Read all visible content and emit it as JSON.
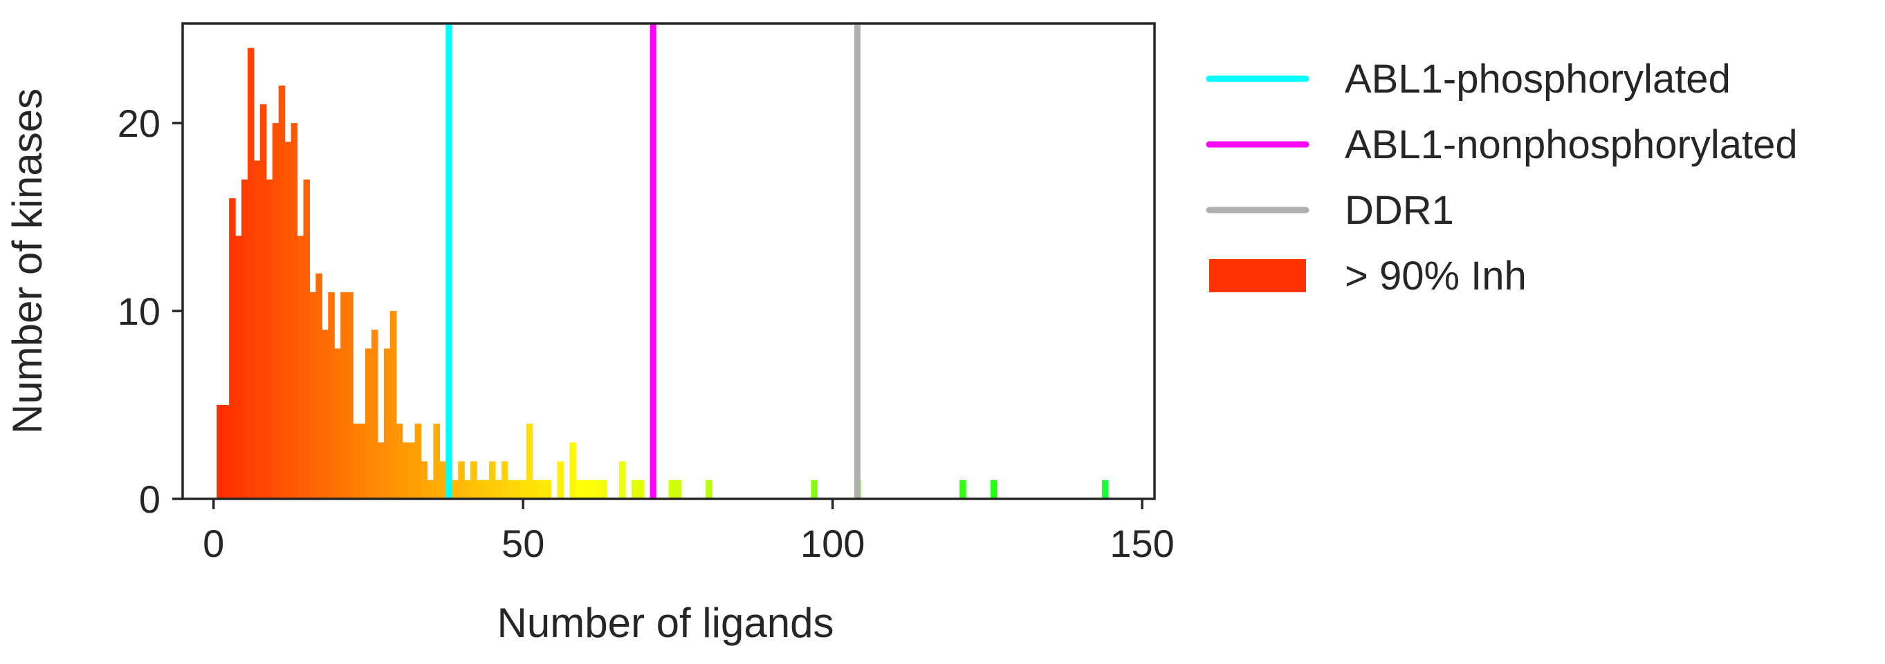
{
  "chart_data": {
    "type": "bar",
    "xlabel": "Number of ligands",
    "ylabel": "Number of kinases",
    "xlim": [
      -5,
      152
    ],
    "ylim": [
      0,
      25.3
    ],
    "xticks": [
      0,
      50,
      100,
      150
    ],
    "xtick_labels": [
      "0",
      "50",
      "100",
      "150"
    ],
    "yticks": [
      0,
      10,
      20
    ],
    "ytick_labels": [
      "0",
      "10",
      "20"
    ],
    "grid": false,
    "legend_position": "outside-right",
    "bin_width": 1,
    "bars_series": "> 90% Inh",
    "bars": [
      {
        "x": 1,
        "y": 5
      },
      {
        "x": 2,
        "y": 5
      },
      {
        "x": 3,
        "y": 16
      },
      {
        "x": 4,
        "y": 14
      },
      {
        "x": 5,
        "y": 17
      },
      {
        "x": 6,
        "y": 24
      },
      {
        "x": 7,
        "y": 18
      },
      {
        "x": 8,
        "y": 21
      },
      {
        "x": 9,
        "y": 17
      },
      {
        "x": 10,
        "y": 20
      },
      {
        "x": 11,
        "y": 22
      },
      {
        "x": 12,
        "y": 19
      },
      {
        "x": 13,
        "y": 20
      },
      {
        "x": 14,
        "y": 14
      },
      {
        "x": 15,
        "y": 17
      },
      {
        "x": 16,
        "y": 11
      },
      {
        "x": 17,
        "y": 12
      },
      {
        "x": 18,
        "y": 9
      },
      {
        "x": 19,
        "y": 11
      },
      {
        "x": 20,
        "y": 8
      },
      {
        "x": 21,
        "y": 11
      },
      {
        "x": 22,
        "y": 11
      },
      {
        "x": 23,
        "y": 4
      },
      {
        "x": 24,
        "y": 4
      },
      {
        "x": 25,
        "y": 8
      },
      {
        "x": 26,
        "y": 9
      },
      {
        "x": 27,
        "y": 3
      },
      {
        "x": 28,
        "y": 8
      },
      {
        "x": 29,
        "y": 10
      },
      {
        "x": 30,
        "y": 4
      },
      {
        "x": 31,
        "y": 3
      },
      {
        "x": 32,
        "y": 3
      },
      {
        "x": 33,
        "y": 4
      },
      {
        "x": 34,
        "y": 2
      },
      {
        "x": 35,
        "y": 1
      },
      {
        "x": 36,
        "y": 4
      },
      {
        "x": 37,
        "y": 2
      },
      {
        "x": 38,
        "y": 2
      },
      {
        "x": 39,
        "y": 1
      },
      {
        "x": 40,
        "y": 2
      },
      {
        "x": 41,
        "y": 1
      },
      {
        "x": 42,
        "y": 2
      },
      {
        "x": 43,
        "y": 1
      },
      {
        "x": 44,
        "y": 1
      },
      {
        "x": 45,
        "y": 2
      },
      {
        "x": 46,
        "y": 1
      },
      {
        "x": 47,
        "y": 2
      },
      {
        "x": 48,
        "y": 1
      },
      {
        "x": 49,
        "y": 1
      },
      {
        "x": 50,
        "y": 1
      },
      {
        "x": 51,
        "y": 4
      },
      {
        "x": 52,
        "y": 1
      },
      {
        "x": 53,
        "y": 1
      },
      {
        "x": 54,
        "y": 1
      },
      {
        "x": 56,
        "y": 2
      },
      {
        "x": 58,
        "y": 3
      },
      {
        "x": 59,
        "y": 1
      },
      {
        "x": 60,
        "y": 1
      },
      {
        "x": 61,
        "y": 1
      },
      {
        "x": 62,
        "y": 1
      },
      {
        "x": 63,
        "y": 1
      },
      {
        "x": 66,
        "y": 2
      },
      {
        "x": 68,
        "y": 1
      },
      {
        "x": 69,
        "y": 1
      },
      {
        "x": 74,
        "y": 1
      },
      {
        "x": 75,
        "y": 1
      },
      {
        "x": 80,
        "y": 1
      },
      {
        "x": 97,
        "y": 1
      },
      {
        "x": 104,
        "y": 1
      },
      {
        "x": 121,
        "y": 1
      },
      {
        "x": 126,
        "y": 1
      },
      {
        "x": 144,
        "y": 1
      }
    ],
    "vlines": [
      {
        "name": "ABL1-phosphorylated",
        "x": 38,
        "color": "#00FFFF"
      },
      {
        "name": "ABL1-nonphosphorylated",
        "x": 71,
        "color": "#FF00FF"
      },
      {
        "name": "DDR1",
        "x": 104,
        "color": "#B0B0B0"
      }
    ],
    "legend": [
      {
        "label": "ABL1-phosphorylated",
        "kind": "line",
        "color": "#00FFFF"
      },
      {
        "label": "ABL1-nonphosphorylated",
        "kind": "line",
        "color": "#FF00FF"
      },
      {
        "label": "DDR1",
        "kind": "line",
        "color": "#B0B0B0"
      },
      {
        "label": "> 90% Inh",
        "kind": "patch",
        "color": "#FF3300"
      }
    ],
    "colormap": "gist_rainbow (red at 0 ligands → green at ~150 ligands)"
  }
}
